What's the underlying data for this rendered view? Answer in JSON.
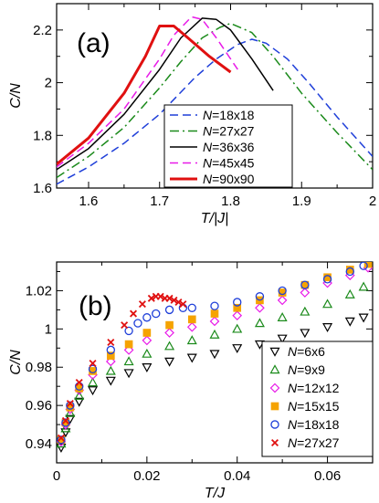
{
  "chart_data": [
    {
      "type": "line",
      "panel_label": "(a)",
      "xlabel": "T/|J|",
      "ylabel": "C/N",
      "xlim": [
        1.555,
        2.0
      ],
      "ylim": [
        1.6,
        2.3
      ],
      "x_ticks": [
        1.6,
        1.7,
        1.8,
        1.9,
        2.0
      ],
      "x_tick_labels": [
        "1.6",
        "1.7",
        "1.8",
        "1.9",
        "2"
      ],
      "y_ticks": [
        1.6,
        1.8,
        2.0,
        2.2
      ],
      "y_tick_labels": [
        "1.6",
        "1.8",
        "2",
        "2.2"
      ],
      "legend_position": "lower-right",
      "series": [
        {
          "name": "N=18x18",
          "legend_prefix": "N",
          "legend_suffix": "=18x18",
          "color": "#1f3fd9",
          "style": "dashed",
          "width": 1.5,
          "x": [
            1.555,
            1.6,
            1.65,
            1.7,
            1.75,
            1.78,
            1.81,
            1.83,
            1.85,
            1.88,
            1.91,
            1.95,
            2.0
          ],
          "y": [
            1.615,
            1.68,
            1.77,
            1.88,
            2.02,
            2.09,
            2.145,
            2.165,
            2.15,
            2.09,
            2.0,
            1.87,
            1.72
          ]
        },
        {
          "name": "N=27x27",
          "legend_prefix": "N",
          "legend_suffix": "=27x27",
          "color": "#1a8a1a",
          "style": "dashdot",
          "width": 1.5,
          "x": [
            1.555,
            1.6,
            1.65,
            1.7,
            1.73,
            1.76,
            1.785,
            1.8,
            1.83,
            1.86,
            1.9,
            1.95,
            2.0
          ],
          "y": [
            1.64,
            1.72,
            1.83,
            1.98,
            2.08,
            2.17,
            2.21,
            2.225,
            2.19,
            2.1,
            1.96,
            1.81,
            1.67
          ]
        },
        {
          "name": "N=36x36",
          "legend_prefix": "N",
          "legend_suffix": "=36x36",
          "color": "#000000",
          "style": "solid",
          "width": 1.5,
          "x": [
            1.555,
            1.6,
            1.65,
            1.7,
            1.73,
            1.76,
            1.78,
            1.8,
            1.83,
            1.86
          ],
          "y": [
            1.67,
            1.75,
            1.88,
            2.05,
            2.17,
            2.245,
            2.24,
            2.2,
            2.09,
            1.97
          ]
        },
        {
          "name": "N=45x45",
          "legend_prefix": "N",
          "legend_suffix": "=45x45",
          "color": "#e81ae8",
          "style": "dashed",
          "width": 1.5,
          "x": [
            1.555,
            1.6,
            1.65,
            1.7,
            1.72,
            1.745,
            1.76,
            1.78,
            1.81
          ],
          "y": [
            1.68,
            1.77,
            1.9,
            2.09,
            2.18,
            2.25,
            2.24,
            2.17,
            2.05
          ]
        },
        {
          "name": "N=90x90",
          "legend_prefix": "N",
          "legend_suffix": "=90x90",
          "color": "#e01010",
          "style": "solid",
          "width": 3,
          "x": [
            1.555,
            1.6,
            1.65,
            1.68,
            1.7,
            1.72,
            1.74,
            1.77,
            1.8
          ],
          "y": [
            1.69,
            1.79,
            1.96,
            2.1,
            2.215,
            2.215,
            2.17,
            2.1,
            2.04
          ]
        }
      ]
    },
    {
      "type": "scatter",
      "panel_label": "(b)",
      "xlabel": "T/J",
      "ylabel": "C/N",
      "xlim": [
        0,
        0.07
      ],
      "ylim": [
        0.93,
        1.035
      ],
      "x_ticks": [
        0,
        0.02,
        0.04,
        0.06
      ],
      "x_tick_labels": [
        "0",
        "0.02",
        "0.04",
        "0.06"
      ],
      "y_ticks": [
        0.94,
        0.96,
        0.98,
        1.0,
        1.02
      ],
      "y_tick_labels": [
        "0.94",
        "0.96",
        "0.98",
        "1",
        "1.02"
      ],
      "legend_position": "lower-right",
      "series": [
        {
          "name": "N=6x6",
          "legend_prefix": "N",
          "legend_suffix": "=6x6",
          "color": "#000000",
          "marker": "triangle-down",
          "x": [
            0.001,
            0.002,
            0.003,
            0.005,
            0.008,
            0.012,
            0.016,
            0.02,
            0.025,
            0.03,
            0.035,
            0.04,
            0.045,
            0.05,
            0.055,
            0.06,
            0.065,
            0.068
          ],
          "y": [
            0.938,
            0.946,
            0.953,
            0.962,
            0.968,
            0.973,
            0.977,
            0.98,
            0.983,
            0.985,
            0.987,
            0.99,
            0.992,
            0.995,
            0.998,
            1.001,
            1.004,
            1.006
          ]
        },
        {
          "name": "N=9x9",
          "legend_prefix": "N",
          "legend_suffix": "=9x9",
          "color": "#1a8a1a",
          "marker": "triangle-up",
          "x": [
            0.001,
            0.002,
            0.003,
            0.005,
            0.008,
            0.012,
            0.016,
            0.02,
            0.025,
            0.03,
            0.035,
            0.04,
            0.045,
            0.05,
            0.055,
            0.06,
            0.065,
            0.068
          ],
          "y": [
            0.94,
            0.948,
            0.956,
            0.965,
            0.972,
            0.978,
            0.983,
            0.987,
            0.991,
            0.994,
            0.997,
            1.0,
            1.003,
            1.006,
            1.009,
            1.013,
            1.018,
            1.022
          ]
        },
        {
          "name": "N=12x12",
          "legend_prefix": "N",
          "legend_suffix": "=12x12",
          "color": "#e81ae8",
          "marker": "diamond",
          "x": [
            0.001,
            0.002,
            0.003,
            0.005,
            0.008,
            0.012,
            0.016,
            0.02,
            0.025,
            0.03,
            0.035,
            0.04,
            0.045,
            0.05,
            0.055,
            0.06,
            0.065,
            0.069
          ],
          "y": [
            0.941,
            0.95,
            0.958,
            0.968,
            0.976,
            0.983,
            0.989,
            0.994,
            0.998,
            1.001,
            1.004,
            1.007,
            1.011,
            1.015,
            1.019,
            1.024,
            1.028,
            1.032
          ]
        },
        {
          "name": "N=15x15",
          "legend_prefix": "N",
          "legend_suffix": "=15x15",
          "color": "#f5a300",
          "marker": "square",
          "x": [
            0.001,
            0.002,
            0.003,
            0.005,
            0.008,
            0.012,
            0.016,
            0.02,
            0.025,
            0.03,
            0.035,
            0.04,
            0.045,
            0.05,
            0.055,
            0.06,
            0.065,
            0.069
          ],
          "y": [
            0.942,
            0.951,
            0.959,
            0.969,
            0.978,
            0.986,
            0.992,
            0.998,
            1.002,
            1.005,
            1.008,
            1.011,
            1.015,
            1.019,
            1.023,
            1.027,
            1.031,
            1.034
          ]
        },
        {
          "name": "N=18x18",
          "legend_prefix": "N",
          "legend_suffix": "=18x18",
          "color": "#1f3fd9",
          "marker": "circle",
          "x": [
            0.001,
            0.002,
            0.003,
            0.005,
            0.008,
            0.012,
            0.016,
            0.018,
            0.02,
            0.022,
            0.025,
            0.028,
            0.03,
            0.035,
            0.04,
            0.045,
            0.05,
            0.055,
            0.06,
            0.065,
            0.068
          ],
          "y": [
            0.942,
            0.951,
            0.96,
            0.97,
            0.979,
            0.989,
            0.999,
            1.003,
            1.006,
            1.008,
            1.01,
            1.011,
            1.011,
            1.012,
            1.014,
            1.017,
            1.02,
            1.023,
            1.026,
            1.03,
            1.033
          ]
        },
        {
          "name": "N=27x27",
          "legend_prefix": "N",
          "legend_suffix": "=27x27",
          "color": "#e01010",
          "marker": "x",
          "x": [
            0.001,
            0.002,
            0.003,
            0.005,
            0.008,
            0.012,
            0.015,
            0.017,
            0.019,
            0.021,
            0.022,
            0.023,
            0.024,
            0.025,
            0.026,
            0.027,
            0.028
          ],
          "y": [
            0.943,
            0.952,
            0.961,
            0.972,
            0.982,
            0.993,
            1.002,
            1.008,
            1.013,
            1.016,
            1.017,
            1.017,
            1.016,
            1.016,
            1.015,
            1.014,
            1.013
          ]
        }
      ]
    }
  ]
}
